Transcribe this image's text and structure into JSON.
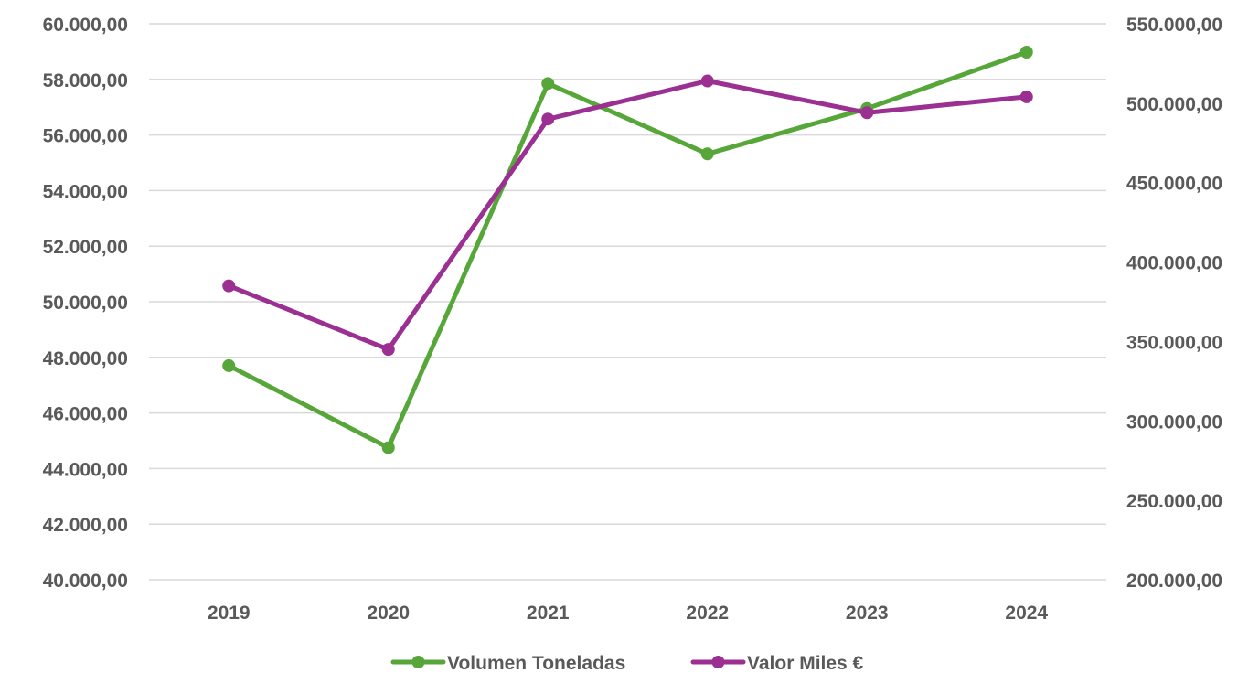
{
  "chart_data": {
    "type": "line",
    "categories": [
      "2019",
      "2020",
      "2021",
      "2022",
      "2023",
      "2024"
    ],
    "series": [
      {
        "name": "Volumen Toneladas",
        "axis": "left",
        "color": "#57a639",
        "values": [
          47700,
          44750,
          57850,
          55320,
          56950,
          58980
        ]
      },
      {
        "name": "Valor Miles €",
        "axis": "right",
        "color": "#9b2f92",
        "values": [
          385000,
          345000,
          490000,
          514000,
          494000,
          504000
        ]
      }
    ],
    "y_left": {
      "min": 40000,
      "max": 60000,
      "step": 2000,
      "tick_labels": [
        "40.000,00",
        "42.000,00",
        "44.000,00",
        "46.000,00",
        "48.000,00",
        "50.000,00",
        "52.000,00",
        "54.000,00",
        "56.000,00",
        "58.000,00",
        "60.000,00"
      ]
    },
    "y_right": {
      "min": 200000,
      "max": 550000,
      "step": 50000,
      "tick_labels": [
        "200.000,00",
        "250.000,00",
        "300.000,00",
        "350.000,00",
        "400.000,00",
        "450.000,00",
        "500.000,00",
        "550.000,00"
      ]
    },
    "grid": true,
    "legend_position": "bottom-center",
    "title": "",
    "xlabel": "",
    "ylabel": ""
  }
}
